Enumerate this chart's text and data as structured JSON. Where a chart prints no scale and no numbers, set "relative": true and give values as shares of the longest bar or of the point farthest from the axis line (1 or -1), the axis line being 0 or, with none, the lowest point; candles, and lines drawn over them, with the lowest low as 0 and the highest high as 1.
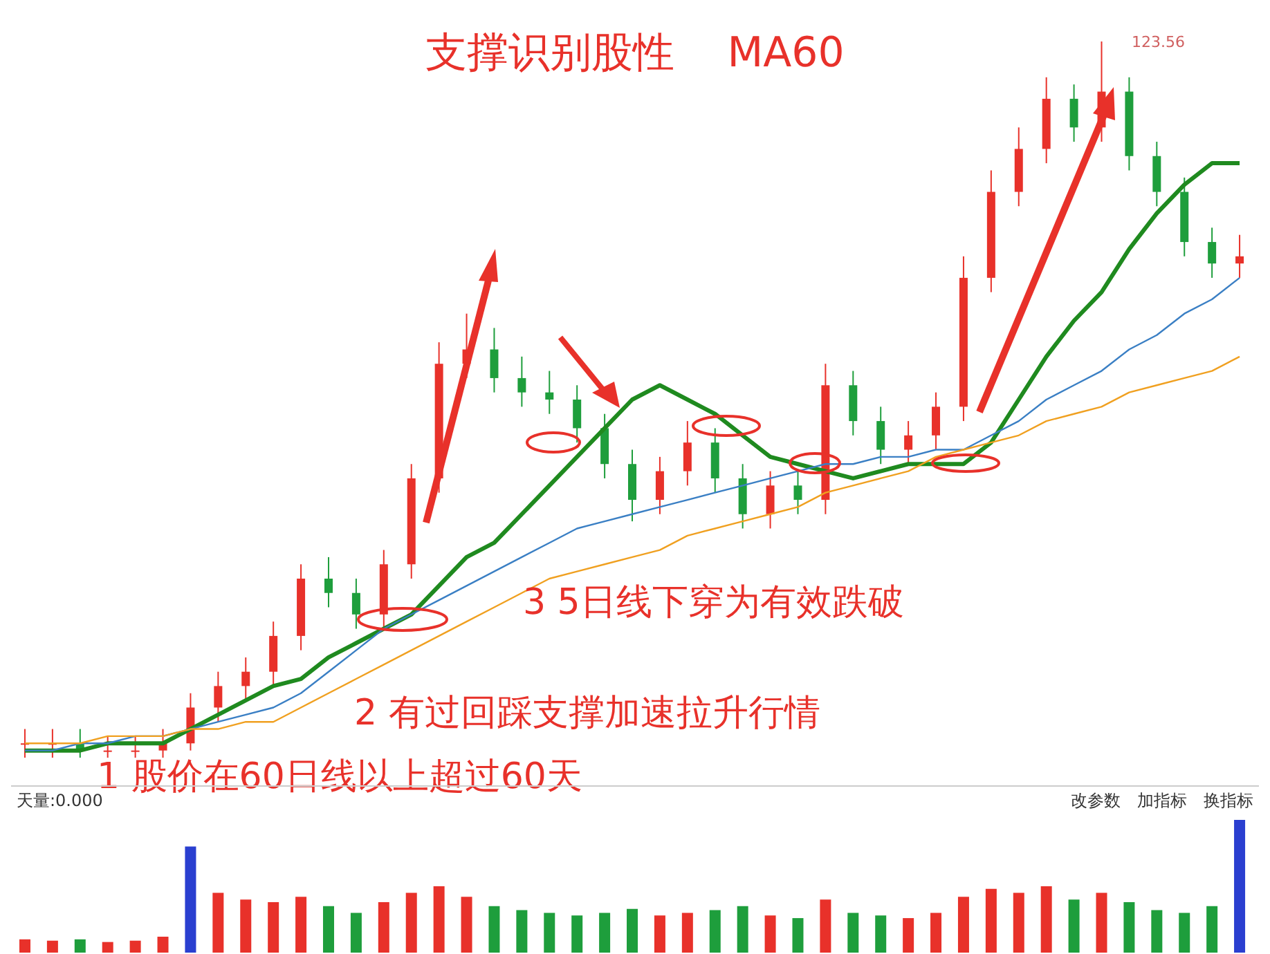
{
  "chart_data": [
    {
      "type": "candlestick",
      "relative": true,
      "title": "支撑识别股性    MA60",
      "categories": [
        null,
        null,
        null,
        null,
        null,
        null,
        null,
        null,
        null,
        null,
        null,
        null,
        null,
        null,
        null,
        null,
        null,
        null,
        null,
        null,
        null,
        null,
        null,
        null,
        null,
        null,
        null,
        null,
        null,
        null,
        null,
        null,
        null,
        null,
        null,
        null,
        null,
        null,
        null,
        null,
        null,
        null,
        null,
        null,
        null
      ],
      "ohlc": [
        [
          0.02,
          0.04,
          0.0,
          0.02
        ],
        [
          0.02,
          0.04,
          0.0,
          0.02
        ],
        [
          0.02,
          0.04,
          0.0,
          0.01
        ],
        [
          0.01,
          0.03,
          0.0,
          0.01
        ],
        [
          0.01,
          0.03,
          0.0,
          0.01
        ],
        [
          0.01,
          0.04,
          0.0,
          0.02
        ],
        [
          0.02,
          0.09,
          0.01,
          0.07
        ],
        [
          0.07,
          0.12,
          0.05,
          0.1
        ],
        [
          0.1,
          0.14,
          0.08,
          0.12
        ],
        [
          0.12,
          0.19,
          0.1,
          0.17
        ],
        [
          0.17,
          0.27,
          0.15,
          0.25
        ],
        [
          0.25,
          0.28,
          0.21,
          0.23
        ],
        [
          0.23,
          0.25,
          0.18,
          0.2
        ],
        [
          0.2,
          0.29,
          0.18,
          0.27
        ],
        [
          0.27,
          0.41,
          0.25,
          0.39
        ],
        [
          0.39,
          0.58,
          0.37,
          0.55
        ],
        [
          0.55,
          0.62,
          0.53,
          0.57
        ],
        [
          0.57,
          0.6,
          0.51,
          0.53
        ],
        [
          0.53,
          0.56,
          0.49,
          0.51
        ],
        [
          0.51,
          0.54,
          0.48,
          0.5
        ],
        [
          0.5,
          0.52,
          0.44,
          0.46
        ],
        [
          0.46,
          0.48,
          0.39,
          0.41
        ],
        [
          0.41,
          0.43,
          0.33,
          0.36
        ],
        [
          0.36,
          0.42,
          0.34,
          0.4
        ],
        [
          0.4,
          0.47,
          0.38,
          0.44
        ],
        [
          0.44,
          0.46,
          0.37,
          0.39
        ],
        [
          0.39,
          0.41,
          0.32,
          0.34
        ],
        [
          0.34,
          0.4,
          0.32,
          0.38
        ],
        [
          0.38,
          0.4,
          0.34,
          0.36
        ],
        [
          0.36,
          0.55,
          0.34,
          0.52
        ],
        [
          0.52,
          0.54,
          0.45,
          0.47
        ],
        [
          0.47,
          0.49,
          0.41,
          0.43
        ],
        [
          0.43,
          0.47,
          0.41,
          0.45
        ],
        [
          0.45,
          0.51,
          0.43,
          0.49
        ],
        [
          0.49,
          0.7,
          0.47,
          0.67
        ],
        [
          0.67,
          0.82,
          0.65,
          0.79
        ],
        [
          0.79,
          0.88,
          0.77,
          0.85
        ],
        [
          0.85,
          0.95,
          0.83,
          0.92
        ],
        [
          0.92,
          0.94,
          0.86,
          0.88
        ],
        [
          0.88,
          1.0,
          0.86,
          0.93
        ],
        [
          0.93,
          0.95,
          0.82,
          0.84
        ],
        [
          0.84,
          0.86,
          0.77,
          0.79
        ],
        [
          0.79,
          0.81,
          0.7,
          0.72
        ],
        [
          0.72,
          0.74,
          0.67,
          0.69
        ],
        [
          0.69,
          0.73,
          0.67,
          0.7
        ]
      ],
      "colors": [
        "#e8312a",
        "#e8312a",
        "#1e9e3c",
        "#e8312a",
        "#e8312a",
        "#e8312a",
        "#e8312a",
        "#e8312a",
        "#e8312a",
        "#e8312a",
        "#e8312a",
        "#1e9e3c",
        "#1e9e3c",
        "#e8312a",
        "#e8312a",
        "#e8312a",
        "#e8312a",
        "#1e9e3c",
        "#1e9e3c",
        "#1e9e3c",
        "#1e9e3c",
        "#1e9e3c",
        "#1e9e3c",
        "#e8312a",
        "#e8312a",
        "#1e9e3c",
        "#1e9e3c",
        "#e8312a",
        "#1e9e3c",
        "#e8312a",
        "#1e9e3c",
        "#1e9e3c",
        "#e8312a",
        "#e8312a",
        "#e8312a",
        "#e8312a",
        "#e8312a",
        "#e8312a",
        "#1e9e3c",
        "#e8312a",
        "#1e9e3c",
        "#1e9e3c",
        "#1e9e3c",
        "#1e9e3c",
        "#e8312a"
      ],
      "series": [
        {
          "type": "line",
          "color": "#1f8a1f",
          "values": [
            0.01,
            0.01,
            0.01,
            0.02,
            0.02,
            0.02,
            0.04,
            0.06,
            0.08,
            0.1,
            0.11,
            0.14,
            0.16,
            0.18,
            0.2,
            0.24,
            0.28,
            0.3,
            0.34,
            0.38,
            0.42,
            0.46,
            0.5,
            0.52,
            0.5,
            0.48,
            0.45,
            0.42,
            0.41,
            0.4,
            0.39,
            0.4,
            0.41,
            0.41,
            0.41,
            0.44,
            0.5,
            0.56,
            0.61,
            0.65,
            0.71,
            0.76,
            0.8,
            0.83,
            0.83
          ]
        },
        {
          "type": "line",
          "color": "#3a7fc4",
          "values": [
            0.01,
            0.01,
            0.02,
            0.02,
            0.03,
            0.03,
            0.04,
            0.05,
            0.06,
            0.07,
            0.09,
            0.12,
            0.15,
            0.18,
            0.2,
            0.22,
            0.24,
            0.26,
            0.28,
            0.3,
            0.32,
            0.33,
            0.34,
            0.35,
            0.36,
            0.37,
            0.38,
            0.39,
            0.4,
            0.41,
            0.41,
            0.42,
            0.42,
            0.43,
            0.43,
            0.45,
            0.47,
            0.5,
            0.52,
            0.54,
            0.57,
            0.59,
            0.62,
            0.64,
            0.67
          ]
        },
        {
          "type": "line",
          "color": "#f0a020",
          "values": [
            0.02,
            0.02,
            0.02,
            0.03,
            0.03,
            0.03,
            0.04,
            0.04,
            0.05,
            0.05,
            0.07,
            0.09,
            0.11,
            0.13,
            0.15,
            0.17,
            0.19,
            0.21,
            0.23,
            0.25,
            0.26,
            0.27,
            0.28,
            0.29,
            0.31,
            0.32,
            0.33,
            0.34,
            0.35,
            0.37,
            0.38,
            0.39,
            0.4,
            0.42,
            0.43,
            0.44,
            0.45,
            0.47,
            0.48,
            0.49,
            0.51,
            0.52,
            0.53,
            0.54,
            0.56
          ]
        }
      ],
      "marker": "none",
      "line_style": "solid",
      "annotations": [
        "123.56",
        "3 5日线下穿为有效跌破",
        "2 有过回踩支撑加速拉升行情",
        "1 股价在60日线以上超过60天"
      ]
    },
    {
      "type": "bar",
      "relative": true,
      "categories": [
        null,
        null,
        null,
        null,
        null,
        null,
        null,
        null,
        null,
        null,
        null,
        null,
        null,
        null,
        null,
        null,
        null,
        null,
        null,
        null,
        null,
        null,
        null,
        null,
        null,
        null,
        null,
        null,
        null,
        null,
        null,
        null,
        null,
        null,
        null,
        null,
        null,
        null,
        null,
        null,
        null,
        null,
        null,
        null,
        null
      ],
      "values": [
        0.1,
        0.09,
        0.1,
        0.08,
        0.09,
        0.12,
        0.8,
        0.45,
        0.4,
        0.38,
        0.42,
        0.35,
        0.3,
        0.38,
        0.45,
        0.5,
        0.42,
        0.35,
        0.32,
        0.3,
        0.28,
        0.3,
        0.33,
        0.28,
        0.3,
        0.32,
        0.35,
        0.28,
        0.26,
        0.4,
        0.3,
        0.28,
        0.26,
        0.3,
        0.42,
        0.48,
        0.45,
        0.5,
        0.4,
        0.45,
        0.38,
        0.32,
        0.3,
        0.35,
        1.0
      ],
      "colors": [
        "#e8312a",
        "#e8312a",
        "#1e9e3c",
        "#e8312a",
        "#e8312a",
        "#e8312a",
        "#2a3fd0",
        "#e8312a",
        "#e8312a",
        "#e8312a",
        "#e8312a",
        "#1e9e3c",
        "#1e9e3c",
        "#e8312a",
        "#e8312a",
        "#e8312a",
        "#e8312a",
        "#1e9e3c",
        "#1e9e3c",
        "#1e9e3c",
        "#1e9e3c",
        "#1e9e3c",
        "#1e9e3c",
        "#e8312a",
        "#e8312a",
        "#1e9e3c",
        "#1e9e3c",
        "#e8312a",
        "#1e9e3c",
        "#e8312a",
        "#1e9e3c",
        "#1e9e3c",
        "#e8312a",
        "#e8312a",
        "#e8312a",
        "#e8312a",
        "#e8312a",
        "#e8312a",
        "#1e9e3c",
        "#e8312a",
        "#1e9e3c",
        "#1e9e3c",
        "#1e9e3c",
        "#1e9e3c",
        "#2a3fd0"
      ],
      "annotations": [
        "天量:0.000",
        "改参数",
        "加指标",
        "换指标"
      ]
    }
  ]
}
